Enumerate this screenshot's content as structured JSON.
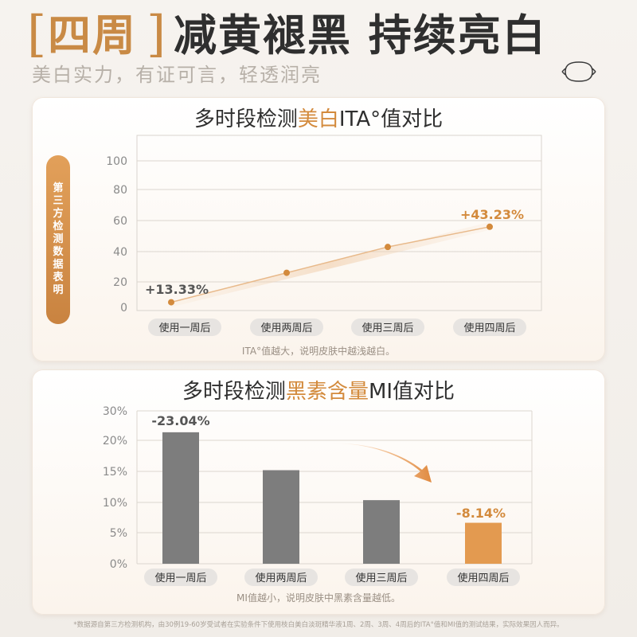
{
  "header": {
    "bracket_open": "[",
    "lead": "四周",
    "bracket_close": "]",
    "main": "减黄褪黑 持续亮白",
    "subtitle": "美白实力，有证可言，轻透润亮"
  },
  "colors": {
    "accent": "#d38a3c",
    "dark_bar": "#7d7d7d",
    "text": "#2f2f2f"
  },
  "side_pill": "第三方检测数据表明",
  "chart1": {
    "title_pre": "多时段检测",
    "title_hl": "美白",
    "title_post": "ITA°值对比",
    "note": "ITA°值越大，说明皮肤中越浅越白。"
  },
  "chart2": {
    "title_pre": "多时段检测",
    "title_hl": "黑素含量",
    "title_post": "MI值对比",
    "note": "MI值越小，说明皮肤中黑素含量越低。"
  },
  "footer": "*数据源自第三方检测机构，由30例19-60岁受试者在实验条件下使用枝白美白淡斑精华液1周、2周、3周、4周后的ITA°值和MI值的测试结果，实际效果因人而异。",
  "chart_data": [
    {
      "type": "line",
      "categories": [
        "使用一周后",
        "使用两周后",
        "使用三周后",
        "使用四周后"
      ],
      "values": [
        4,
        26,
        43,
        56
      ],
      "labels": [
        "+13.33%",
        "",
        "",
        "+43.23%"
      ],
      "yticks": [
        0,
        20,
        40,
        60,
        80,
        100
      ],
      "ylim": [
        0,
        100
      ],
      "grid": true
    },
    {
      "type": "bar",
      "categories": [
        "使用一周后",
        "使用两周后",
        "使用三周后",
        "使用四周后"
      ],
      "values": [
        21.5,
        15.3,
        10.4,
        6.7
      ],
      "labels": [
        "-23.04%",
        "",
        "",
        "-8.14%"
      ],
      "yticks": [
        "0%",
        "5%",
        "10%",
        "15%",
        "20%",
        "30%"
      ],
      "ylim": [
        0,
        25
      ],
      "grid": true
    }
  ]
}
